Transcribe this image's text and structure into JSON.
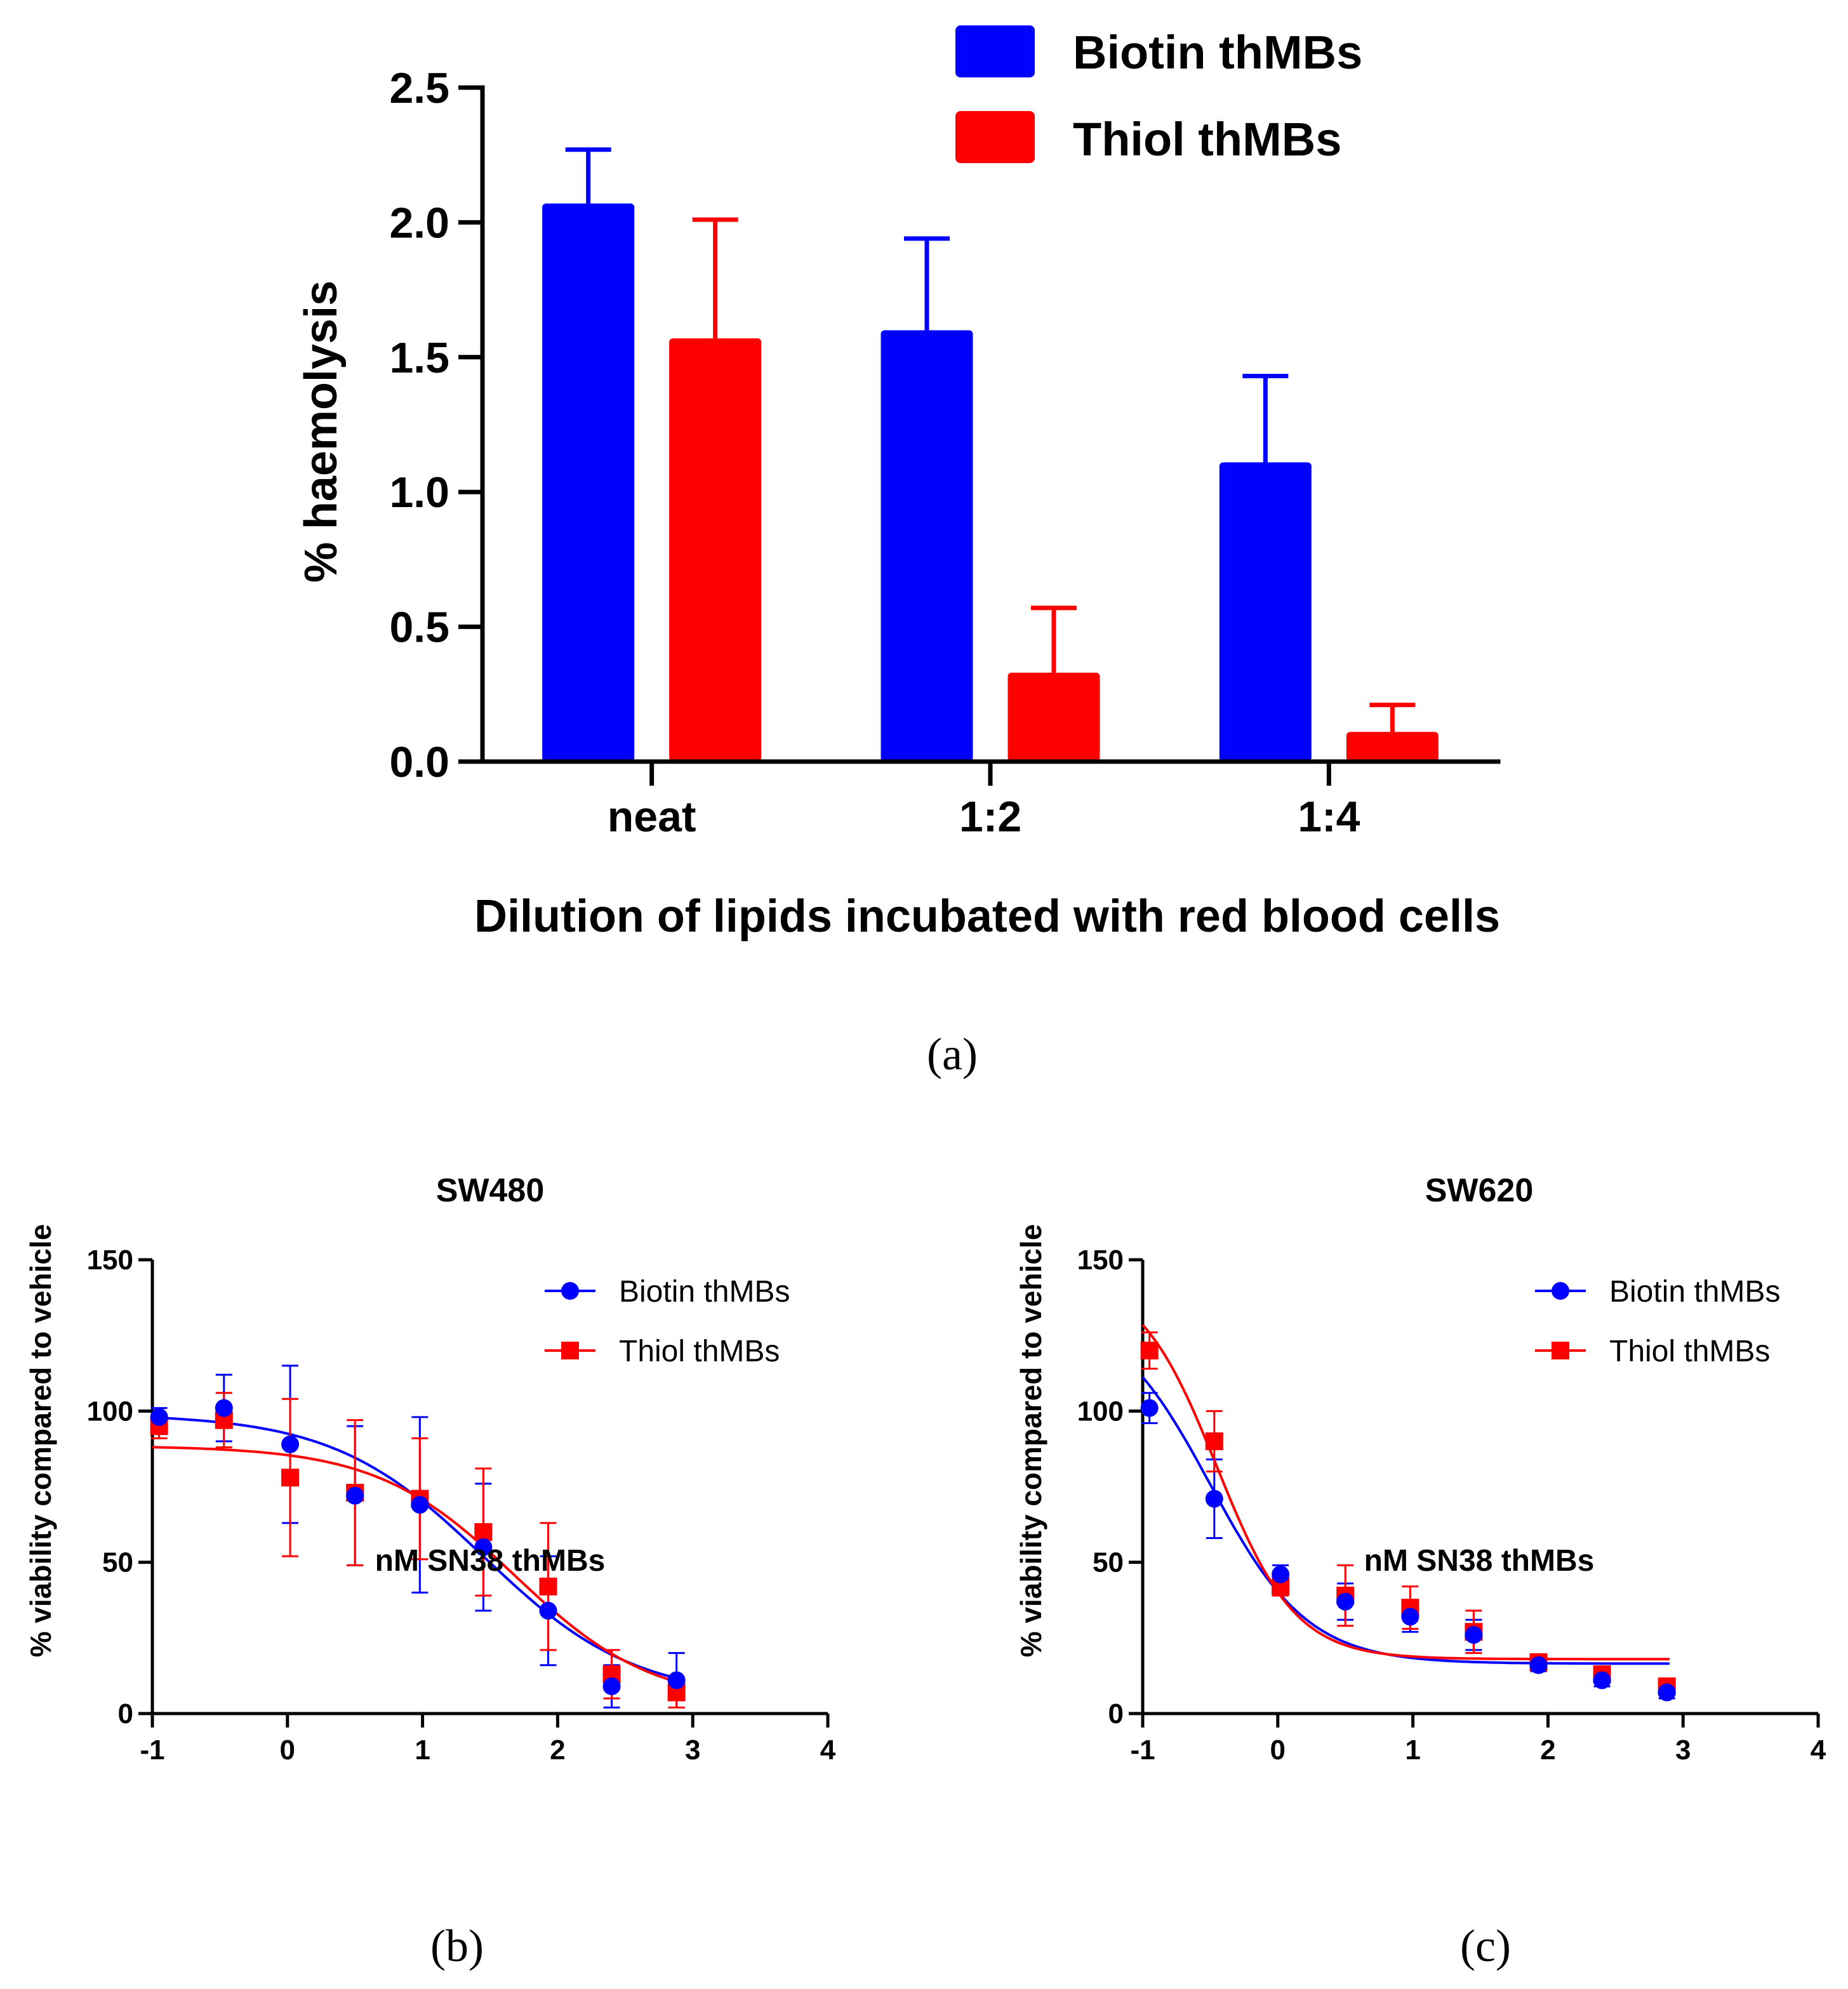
{
  "colors": {
    "biotin": "#0000ff",
    "thiol": "#ff0000",
    "axis": "#000000"
  },
  "chart_data": [
    {
      "id": "a",
      "type": "bar",
      "caption": "(a)",
      "title": "",
      "xlabel": "Dilution of lipids incubated with red blood cells",
      "ylabel": "% haemolysis",
      "ylim": [
        0,
        2.5
      ],
      "yticks": [
        0.0,
        0.5,
        1.0,
        1.5,
        2.0,
        2.5
      ],
      "ytick_labels": [
        "0.0",
        "0.5",
        "1.0",
        "1.5",
        "2.0",
        "2.5"
      ],
      "categories": [
        "neat",
        "1:2",
        "1:4"
      ],
      "legend_position": "top-right",
      "series": [
        {
          "name": "Biotin thMBs",
          "color": "#0000ff",
          "values": [
            2.07,
            1.6,
            1.11
          ],
          "errors": [
            0.2,
            0.34,
            0.32
          ]
        },
        {
          "name": "Thiol thMBs",
          "color": "#ff0000",
          "values": [
            1.57,
            0.33,
            0.11
          ],
          "errors": [
            0.44,
            0.24,
            0.1
          ]
        }
      ]
    },
    {
      "id": "b",
      "type": "scatter",
      "caption": "(b)",
      "title": "SW480",
      "xlabel": "nM SN38 thMBs",
      "ylabel": "% viability compared to vehicle",
      "xlim": [
        -1,
        4
      ],
      "ylim": [
        0,
        150
      ],
      "xticks": [
        -1,
        0,
        1,
        2,
        3,
        4
      ],
      "xtick_labels": [
        "-1",
        "0",
        "1",
        "2",
        "3",
        "4"
      ],
      "yticks": [
        0,
        50,
        100,
        150
      ],
      "ytick_labels": [
        "0",
        "50",
        "100",
        "150"
      ],
      "legend_position": "top-right",
      "series": [
        {
          "name": "Biotin thMBs",
          "marker": "circle",
          "color": "#0000ff",
          "x": [
            -0.95,
            -0.47,
            0.02,
            0.5,
            0.98,
            1.45,
            1.93,
            2.4,
            2.88
          ],
          "y": [
            98,
            101,
            89,
            72,
            69,
            55,
            34,
            9,
            11
          ],
          "errors": [
            3,
            11,
            26,
            23,
            29,
            21,
            18,
            7,
            9
          ],
          "fit": {
            "top": 99,
            "bottom": 5,
            "logIC50": 1.45,
            "hill": -0.78,
            "x_range": [
              -1,
              2.9
            ]
          }
        },
        {
          "name": "Thiol thMBs",
          "marker": "square",
          "color": "#ff0000",
          "x": [
            -0.95,
            -0.47,
            0.02,
            0.5,
            0.98,
            1.45,
            1.93,
            2.4,
            2.88
          ],
          "y": [
            95,
            97,
            78,
            73,
            71,
            60,
            42,
            13,
            7
          ],
          "errors": [
            4,
            9,
            26,
            24,
            20,
            21,
            21,
            8,
            5
          ],
          "fit": {
            "top": 88.5,
            "bottom": 3,
            "logIC50": 1.68,
            "hill": -0.85,
            "x_range": [
              -1,
              2.9
            ]
          }
        }
      ]
    },
    {
      "id": "c",
      "type": "scatter",
      "caption": "(c)",
      "title": "SW620",
      "xlabel": "nM SN38 thMBs",
      "ylabel": "% viability compared to vehicle",
      "xlim": [
        -1,
        4
      ],
      "ylim": [
        0,
        150
      ],
      "xticks": [
        -1,
        0,
        1,
        2,
        3,
        4
      ],
      "xtick_labels": [
        "-1",
        "0",
        "1",
        "2",
        "3",
        "4"
      ],
      "yticks": [
        0,
        50,
        100,
        150
      ],
      "ytick_labels": [
        "0",
        "50",
        "100",
        "150"
      ],
      "legend_position": "top-right",
      "series": [
        {
          "name": "Biotin thMBs",
          "marker": "circle",
          "color": "#0000ff",
          "x": [
            -0.95,
            -0.47,
            0.02,
            0.5,
            0.98,
            1.45,
            1.93,
            2.4,
            2.88
          ],
          "y": [
            101,
            71,
            46,
            37,
            32,
            26,
            16,
            11,
            7
          ],
          "errors": [
            5,
            13,
            3,
            6,
            5,
            5,
            2,
            2,
            2
          ],
          "fit": {
            "top": 135,
            "bottom": 16.5,
            "logIC50": -0.5,
            "hill": -1.2,
            "x_range": [
              -1,
              2.9
            ]
          }
        },
        {
          "name": "Thiol thMBs",
          "marker": "square",
          "color": "#ff0000",
          "x": [
            -0.95,
            -0.47,
            0.02,
            0.5,
            0.98,
            1.45,
            1.93,
            2.4,
            2.88
          ],
          "y": [
            120,
            90,
            42,
            39,
            35,
            27,
            17,
            13,
            9
          ],
          "errors": [
            6,
            10,
            3,
            10,
            7,
            7,
            2,
            2,
            2
          ],
          "fit": {
            "top": 145,
            "bottom": 18,
            "logIC50": -0.45,
            "hill": -1.5,
            "x_range": [
              -1,
              2.9
            ]
          }
        }
      ]
    }
  ]
}
